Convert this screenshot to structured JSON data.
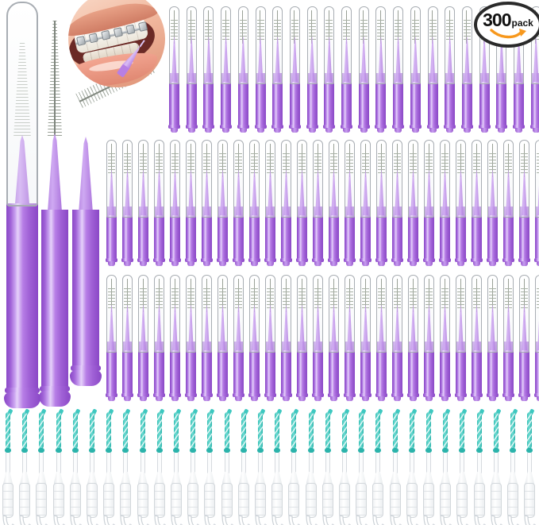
{
  "product": {
    "badge": {
      "count": "300",
      "unit": "pack"
    },
    "items": {
      "large_brushes": 3,
      "interdental_brush_rows": [
        22,
        28,
        28
      ],
      "floss_picks": 32
    },
    "inset": {
      "subject": "mouth-with-braces-and-brush-photo"
    }
  },
  "colors": {
    "brush_purple": "#a566dd",
    "brush_purple_dark": "#8a48c6",
    "cone_purple": "#b98ae4",
    "cap_outline": "#a8adb3",
    "floss_teal": "#3ec8c0",
    "badge_ring": "#2a2a2a",
    "badge_swoosh": "#f7981d"
  }
}
